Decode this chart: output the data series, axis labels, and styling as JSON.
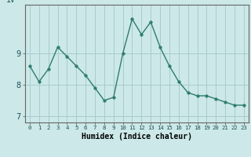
{
  "x": [
    0,
    1,
    2,
    3,
    4,
    5,
    6,
    7,
    8,
    9,
    10,
    11,
    12,
    13,
    14,
    15,
    16,
    17,
    18,
    19,
    20,
    21,
    22,
    23
  ],
  "y": [
    8.6,
    8.1,
    8.5,
    9.2,
    8.9,
    8.6,
    8.3,
    7.9,
    7.5,
    7.6,
    9.0,
    10.1,
    9.6,
    10.0,
    9.2,
    8.6,
    8.1,
    7.75,
    7.65,
    7.65,
    7.55,
    7.45,
    7.35,
    7.35
  ],
  "xlabel": "Humidex (Indice chaleur)",
  "bg_color": "#cce8e8",
  "line_color": "#2e7d6e",
  "marker_color": "#2e7d6e",
  "grid_color": "#aacccc",
  "ylim_min": 6.8,
  "ylim_max": 10.55,
  "yticks": [
    7,
    8,
    9
  ],
  "xticks": [
    0,
    1,
    2,
    3,
    4,
    5,
    6,
    7,
    8,
    9,
    10,
    11,
    12,
    13,
    14,
    15,
    16,
    17,
    18,
    19,
    20,
    21,
    22,
    23
  ]
}
